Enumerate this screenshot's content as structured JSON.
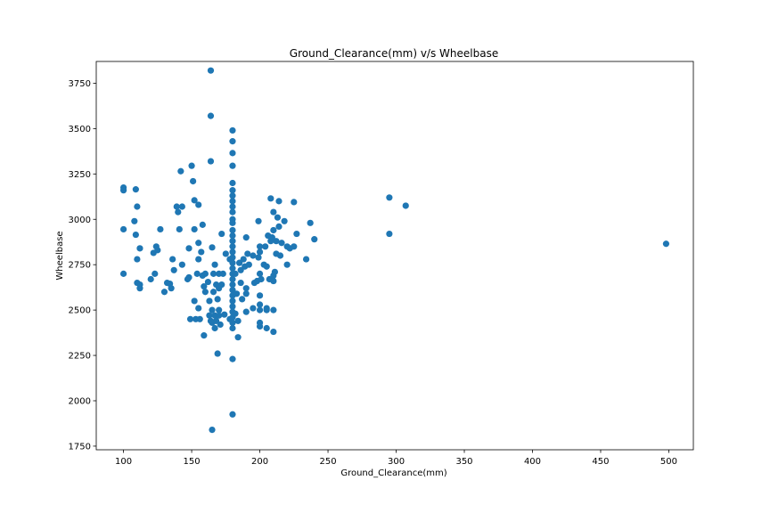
{
  "chart_data": {
    "type": "scatter",
    "title": "Ground_Clearance(mm) v/s Wheelbase",
    "xlabel": "Ground_Clearance(mm)",
    "ylabel": "Wheelbase",
    "xlim": [
      80,
      518
    ],
    "ylim": [
      1730,
      3870
    ],
    "xticks": [
      100,
      150,
      200,
      250,
      300,
      350,
      400,
      450,
      500
    ],
    "yticks": [
      1750,
      2000,
      2250,
      2500,
      2750,
      3000,
      3250,
      3500,
      3750
    ],
    "grid": false,
    "marker_color": "#1f77b4",
    "series": [
      {
        "points": [
          [
            100,
            3175
          ],
          [
            100,
            3160
          ],
          [
            100,
            2945
          ],
          [
            100,
            2700
          ],
          [
            108,
            2990
          ],
          [
            109,
            3165
          ],
          [
            109,
            2915
          ],
          [
            110,
            3070
          ],
          [
            110,
            2780
          ],
          [
            110,
            2650
          ],
          [
            112,
            2840
          ],
          [
            112,
            2620
          ],
          [
            112,
            2640
          ],
          [
            120,
            2670
          ],
          [
            122,
            2815
          ],
          [
            123,
            2700
          ],
          [
            124,
            2850
          ],
          [
            125,
            2830
          ],
          [
            127,
            2945
          ],
          [
            130,
            2600
          ],
          [
            132,
            2650
          ],
          [
            134,
            2645
          ],
          [
            135,
            2620
          ],
          [
            136,
            2780
          ],
          [
            137,
            2720
          ],
          [
            139,
            3070
          ],
          [
            140,
            3040
          ],
          [
            141,
            2945
          ],
          [
            142,
            3265
          ],
          [
            143,
            2750
          ],
          [
            143,
            3070
          ],
          [
            147,
            2670
          ],
          [
            148,
            2840
          ],
          [
            148,
            2680
          ],
          [
            149,
            2450
          ],
          [
            150,
            3295
          ],
          [
            151,
            3210
          ],
          [
            152,
            2550
          ],
          [
            152,
            3105
          ],
          [
            152,
            2945
          ],
          [
            153,
            2450
          ],
          [
            154,
            2700
          ],
          [
            155,
            2510
          ],
          [
            155,
            3080
          ],
          [
            155,
            2780
          ],
          [
            155,
            2870
          ],
          [
            156,
            2450
          ],
          [
            157,
            2820
          ],
          [
            158,
            2970
          ],
          [
            158,
            2690
          ],
          [
            159,
            2630
          ],
          [
            159,
            2360
          ],
          [
            160,
            2600
          ],
          [
            160,
            2700
          ],
          [
            162,
            2655
          ],
          [
            163,
            2550
          ],
          [
            163,
            2470
          ],
          [
            164,
            3570
          ],
          [
            164,
            3320
          ],
          [
            164,
            2440
          ],
          [
            164,
            3820
          ],
          [
            165,
            1840
          ],
          [
            165,
            2845
          ],
          [
            165,
            2500
          ],
          [
            165,
            2430
          ],
          [
            166,
            2700
          ],
          [
            166,
            2600
          ],
          [
            167,
            2750
          ],
          [
            167,
            2470
          ],
          [
            167,
            2400
          ],
          [
            168,
            2440
          ],
          [
            168,
            2640
          ],
          [
            169,
            2260
          ],
          [
            169,
            2560
          ],
          [
            170,
            2700
          ],
          [
            170,
            2620
          ],
          [
            170,
            2500
          ],
          [
            170,
            2470
          ],
          [
            171,
            2420
          ],
          [
            172,
            2920
          ],
          [
            172,
            2640
          ],
          [
            173,
            2700
          ],
          [
            174,
            2475
          ],
          [
            175,
            2810
          ],
          [
            178,
            2780
          ],
          [
            178,
            2450
          ],
          [
            180,
            3490
          ],
          [
            180,
            3430
          ],
          [
            180,
            3365
          ],
          [
            180,
            3295
          ],
          [
            180,
            3200
          ],
          [
            180,
            3160
          ],
          [
            180,
            3130
          ],
          [
            180,
            3100
          ],
          [
            180,
            3070
          ],
          [
            180,
            3040
          ],
          [
            180,
            3000
          ],
          [
            180,
            2980
          ],
          [
            180,
            2940
          ],
          [
            180,
            2910
          ],
          [
            180,
            2880
          ],
          [
            180,
            2850
          ],
          [
            180,
            2820
          ],
          [
            180,
            2790
          ],
          [
            180,
            2760
          ],
          [
            180,
            2730
          ],
          [
            180,
            2700
          ],
          [
            180,
            2670
          ],
          [
            180,
            2640
          ],
          [
            180,
            2610
          ],
          [
            180,
            2580
          ],
          [
            180,
            2550
          ],
          [
            180,
            2520
          ],
          [
            180,
            2490
          ],
          [
            180,
            2460
          ],
          [
            180,
            2430
          ],
          [
            180,
            2400
          ],
          [
            180,
            2230
          ],
          [
            180,
            1925
          ],
          [
            182,
            2700
          ],
          [
            182,
            2480
          ],
          [
            183,
            2590
          ],
          [
            184,
            2440
          ],
          [
            184,
            2350
          ],
          [
            185,
            2760
          ],
          [
            186,
            2650
          ],
          [
            186,
            2720
          ],
          [
            187,
            2560
          ],
          [
            188,
            2780
          ],
          [
            189,
            2740
          ],
          [
            190,
            2490
          ],
          [
            190,
            2620
          ],
          [
            190,
            2590
          ],
          [
            190,
            2900
          ],
          [
            191,
            2810
          ],
          [
            192,
            2750
          ],
          [
            195,
            2800
          ],
          [
            195,
            2510
          ],
          [
            196,
            2650
          ],
          [
            198,
            2660
          ],
          [
            199,
            2990
          ],
          [
            199,
            2790
          ],
          [
            200,
            2850
          ],
          [
            200,
            2700
          ],
          [
            200,
            2580
          ],
          [
            200,
            2530
          ],
          [
            200,
            2500
          ],
          [
            200,
            2430
          ],
          [
            200,
            2410
          ],
          [
            200,
            2820
          ],
          [
            201,
            2670
          ],
          [
            203,
            2750
          ],
          [
            204,
            2850
          ],
          [
            205,
            2400
          ],
          [
            205,
            2740
          ],
          [
            205,
            2510
          ],
          [
            205,
            2500
          ],
          [
            206,
            2910
          ],
          [
            207,
            2670
          ],
          [
            208,
            3115
          ],
          [
            208,
            2880
          ],
          [
            209,
            2900
          ],
          [
            210,
            3040
          ],
          [
            210,
            2940
          ],
          [
            210,
            2690
          ],
          [
            210,
            2660
          ],
          [
            210,
            2500
          ],
          [
            210,
            2380
          ],
          [
            211,
            2710
          ],
          [
            212,
            2880
          ],
          [
            212,
            2810
          ],
          [
            213,
            3010
          ],
          [
            214,
            2960
          ],
          [
            214,
            3100
          ],
          [
            215,
            2800
          ],
          [
            216,
            2870
          ],
          [
            218,
            2990
          ],
          [
            220,
            2850
          ],
          [
            220,
            2750
          ],
          [
            222,
            2840
          ],
          [
            225,
            3095
          ],
          [
            225,
            2850
          ],
          [
            227,
            2920
          ],
          [
            234,
            2780
          ],
          [
            237,
            2980
          ],
          [
            240,
            2890
          ],
          [
            295,
            3120
          ],
          [
            295,
            2920
          ],
          [
            307,
            3075
          ],
          [
            498,
            2865
          ]
        ]
      }
    ]
  }
}
